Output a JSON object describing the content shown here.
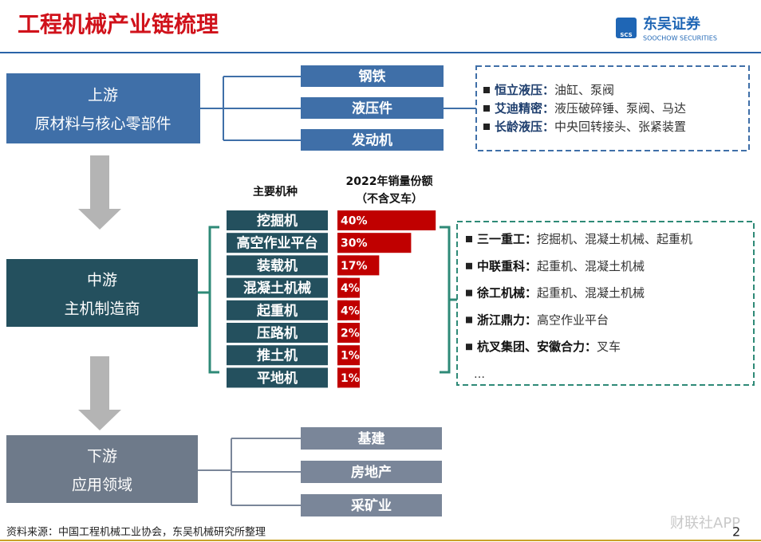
{
  "header": {
    "title": "工程机械产业链梳理",
    "logo": "东吴证券",
    "logo_sub": "SOOCHOW SECURITIES",
    "logo_mark": "SCS"
  },
  "upstream": {
    "title": "上游",
    "subtitle": "原材料与核心零部件",
    "items": [
      "钢铁",
      "液压件",
      "发动机"
    ],
    "companies": [
      {
        "name": "恒立液压：",
        "products": "油缸、泵阀"
      },
      {
        "name": "艾迪精密：",
        "products": "液压破碎锤、泵阀、马达"
      },
      {
        "name": "长龄液压：",
        "products": "中央回转接头、张紧装置"
      }
    ]
  },
  "midstream": {
    "title": "中游",
    "subtitle": "主机制造商",
    "chart_header": "主要机种",
    "share_title": "2022年销量份额",
    "share_note": "（不含叉车）",
    "categories": [
      "挖掘机",
      "高空作业平台",
      "装载机",
      "混凝土机械",
      "起重机",
      "压路机",
      "推土机",
      "平地机"
    ],
    "values": [
      40,
      30,
      17,
      4,
      4,
      2,
      1,
      1
    ],
    "value_labels": [
      "40%",
      "30%",
      "17%",
      "4%",
      "4%",
      "2%",
      "1%",
      "1%"
    ],
    "companies": [
      {
        "name": "三一重工：",
        "products": "挖掘机、混凝土机械、起重机"
      },
      {
        "name": "中联重科：",
        "products": "起重机、混凝土机械"
      },
      {
        "name": "徐工机械：",
        "products": "起重机、混凝土机械"
      },
      {
        "name": "浙江鼎力：",
        "products": "高空作业平台"
      },
      {
        "name": "杭叉集团、安徽合力：",
        "products": "叉车"
      }
    ],
    "more": "…"
  },
  "downstream": {
    "title": "下游",
    "subtitle": "应用领域",
    "items": [
      "基建",
      "房地产",
      "采矿业"
    ]
  },
  "footer": {
    "source": "资料来源：中国工程机械工业协会，东吴机械研究所整理",
    "page": 2,
    "watermark": "财联社APP"
  }
}
